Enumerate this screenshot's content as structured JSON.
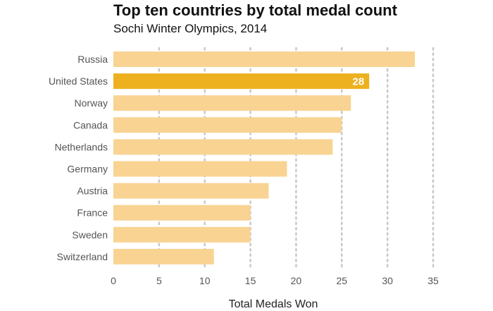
{
  "chart_data": {
    "type": "bar",
    "orientation": "horizontal",
    "title": "Top ten countries by total medal count",
    "subtitle": "Sochi Winter Olympics, 2014",
    "xlabel": "Total Medals Won",
    "ylabel": "",
    "categories": [
      "Russia",
      "United States",
      "Norway",
      "Canada",
      "Netherlands",
      "Germany",
      "Austria",
      "France",
      "Sweden",
      "Switzerland"
    ],
    "values": [
      33,
      28,
      26,
      25,
      24,
      19,
      17,
      15,
      15,
      11
    ],
    "xlim": [
      0,
      35
    ],
    "xticks": [
      0,
      5,
      10,
      15,
      20,
      25,
      30,
      35
    ],
    "grid": "vertical dotted",
    "highlight": {
      "category": "United States",
      "data_label": "28"
    },
    "colors": {
      "bar": "#f8d392",
      "highlight": "#edb11f",
      "grid": "#c8c8c8"
    }
  }
}
